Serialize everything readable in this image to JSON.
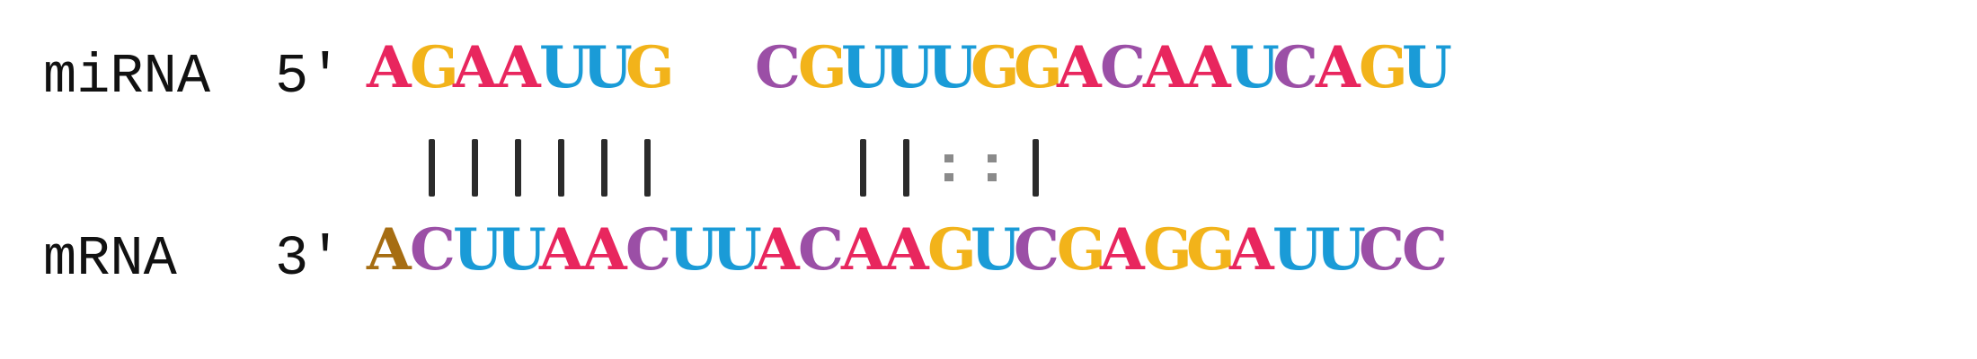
{
  "colors": {
    "A": "#e8265e",
    "G": "#f2b31a",
    "U": "#1a9bd7",
    "C": "#9b4fa6",
    "highlight_A": "#a66d12",
    "text": "#111111",
    "bar": "#2b2b2b",
    "wobble": "#8a8a8a"
  },
  "mirna": {
    "label": "miRNA",
    "prime": "5'",
    "sequence": [
      "A",
      "G",
      "A",
      "A",
      "U",
      "U",
      "G",
      "",
      "",
      "C",
      "G",
      "U",
      "U",
      "U",
      "G",
      "G",
      "A",
      "C",
      "A",
      "A",
      "U",
      "C",
      "A",
      "G",
      "U"
    ]
  },
  "pairing": [
    "",
    "|",
    "|",
    "|",
    "|",
    "|",
    "|",
    "",
    "",
    "",
    "",
    "|",
    "|",
    ":",
    ":",
    "|",
    "",
    "",
    "",
    "",
    "",
    "",
    "",
    "",
    ""
  ],
  "mrna": {
    "label": "mRNA",
    "prime": "3'",
    "sequence": [
      "A",
      "C",
      "U",
      "U",
      "A",
      "A",
      "C",
      "U",
      "U",
      "A",
      "C",
      "A",
      "A",
      "G",
      "U",
      "C",
      "G",
      "A",
      "G",
      "G",
      "A",
      "U",
      "U",
      "C",
      "C"
    ],
    "highlight_index": 0
  }
}
